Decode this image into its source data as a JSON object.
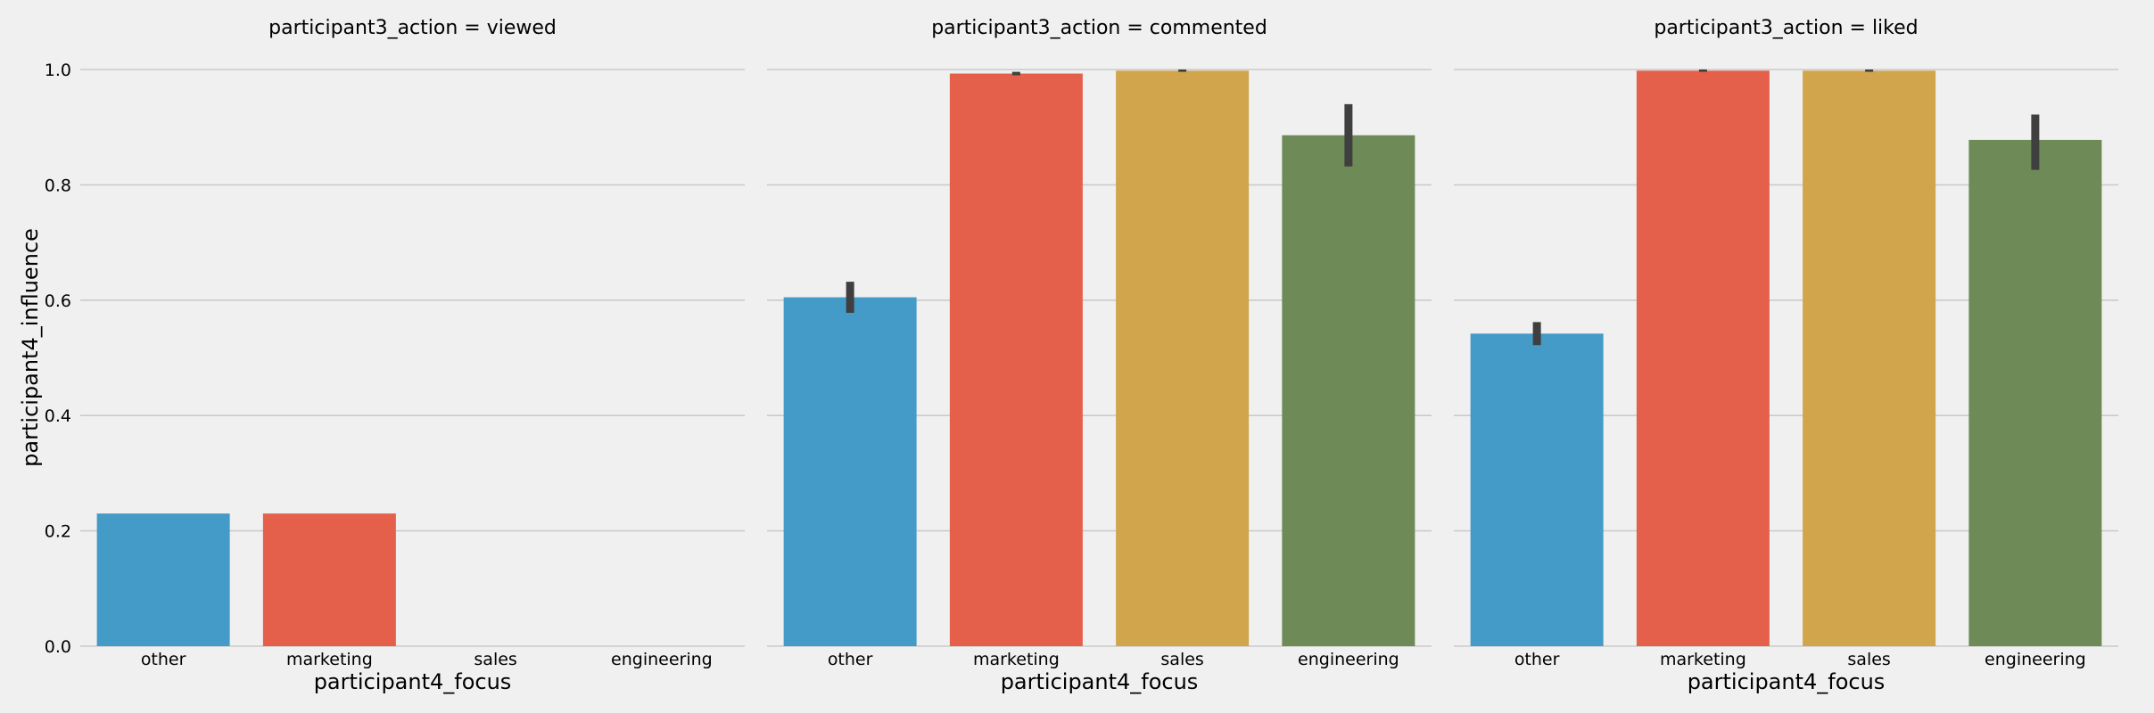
{
  "chart_data": {
    "type": "bar",
    "facet_variable": "participant3_action",
    "ylabel": "participant4_influence",
    "ylim": [
      0,
      1.0
    ],
    "yticks": [
      "0.0",
      "0.2",
      "0.4",
      "0.6",
      "0.8",
      "1.0"
    ],
    "grid": true,
    "categories": [
      "other",
      "marketing",
      "sales",
      "engineering"
    ],
    "colors": [
      "#449bc8",
      "#e5604a",
      "#d0a54b",
      "#6e8b57"
    ],
    "error_bar_color": "#3f3f3f",
    "panels": [
      {
        "title": "participant3_action = viewed",
        "xlabel": "participant4_focus",
        "values": [
          0.23,
          0.23,
          null,
          null
        ],
        "errors": [
          null,
          null,
          null,
          null
        ]
      },
      {
        "title": "participant3_action = commented",
        "xlabel": "participant4_focus",
        "values": [
          0.605,
          0.993,
          0.998,
          0.886
        ],
        "errors": [
          [
            0.578,
            0.632
          ],
          [
            0.99,
            0.996
          ],
          [
            0.996,
            1.0
          ],
          [
            0.832,
            0.94
          ]
        ]
      },
      {
        "title": "participant3_action = liked",
        "xlabel": "participant4_focus",
        "values": [
          0.542,
          0.998,
          0.998,
          0.878
        ],
        "errors": [
          [
            0.522,
            0.562
          ],
          [
            0.996,
            1.0
          ],
          [
            0.996,
            1.0
          ],
          [
            0.826,
            0.922
          ]
        ]
      }
    ]
  }
}
